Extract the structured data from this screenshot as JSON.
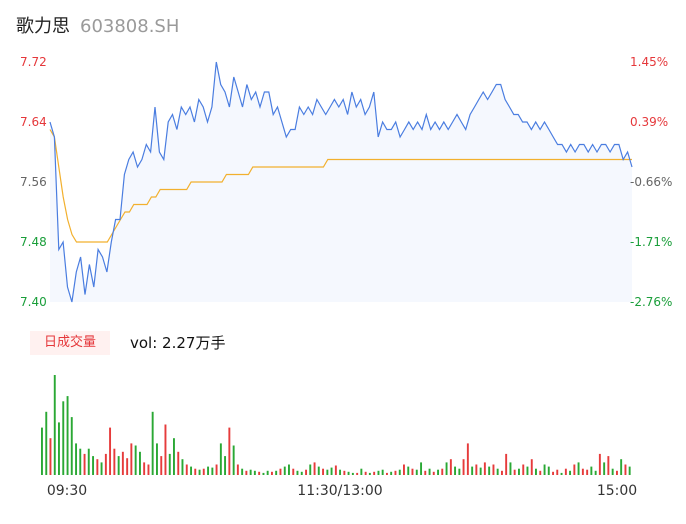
{
  "header": {
    "name": "歌力思",
    "code": "603808.SH"
  },
  "volume_panel": {
    "tag": "日成交量",
    "summary": "vol: 2.27万手"
  },
  "colors": {
    "price_line": "#4a7de0",
    "avg_line": "#f2b02e",
    "area_fill": "#f5f8fe",
    "up": "#e5383b",
    "down": "#1a9e3a",
    "vol_up": "#e63b3b",
    "vol_down": "#2aa834"
  },
  "chart_data": [
    {
      "type": "line",
      "title": "",
      "y_ticks": [
        "7.72",
        "7.64",
        "7.56",
        "7.48",
        "7.40"
      ],
      "y_right_ticks": [
        "1.45%",
        "0.39%",
        "-0.66%",
        "-1.71%",
        "-2.76%"
      ],
      "ylim": [
        7.4,
        7.72
      ],
      "series": [
        {
          "key": "price",
          "values": [
            7.64,
            7.62,
            7.47,
            7.48,
            7.42,
            7.4,
            7.44,
            7.46,
            7.41,
            7.45,
            7.42,
            7.47,
            7.46,
            7.44,
            7.48,
            7.51,
            7.51,
            7.57,
            7.59,
            7.6,
            7.58,
            7.59,
            7.61,
            7.6,
            7.66,
            7.6,
            7.59,
            7.64,
            7.65,
            7.63,
            7.66,
            7.65,
            7.66,
            7.64,
            7.67,
            7.66,
            7.64,
            7.66,
            7.72,
            7.69,
            7.68,
            7.66,
            7.7,
            7.68,
            7.66,
            7.69,
            7.67,
            7.68,
            7.66,
            7.68,
            7.68,
            7.65,
            7.66,
            7.64,
            7.62,
            7.63,
            7.63,
            7.66,
            7.65,
            7.66,
            7.65,
            7.67,
            7.66,
            7.65,
            7.66,
            7.67,
            7.66,
            7.67,
            7.65,
            7.68,
            7.66,
            7.67,
            7.65,
            7.66,
            7.68,
            7.62,
            7.64,
            7.63,
            7.63,
            7.64,
            7.62,
            7.63,
            7.64,
            7.63,
            7.64,
            7.63,
            7.65,
            7.63,
            7.64,
            7.63,
            7.64,
            7.63,
            7.64,
            7.65,
            7.64,
            7.63,
            7.65,
            7.66,
            7.67,
            7.68,
            7.67,
            7.68,
            7.69,
            7.69,
            7.67,
            7.66,
            7.65,
            7.65,
            7.64,
            7.64,
            7.63,
            7.64,
            7.63,
            7.64,
            7.63,
            7.62,
            7.61,
            7.61,
            7.6,
            7.61,
            7.6,
            7.61,
            7.61,
            7.6,
            7.61,
            7.6,
            7.61,
            7.61,
            7.6,
            7.61,
            7.61,
            7.59,
            7.6,
            7.58
          ]
        },
        {
          "key": "average",
          "values": [
            7.63,
            7.62,
            7.58,
            7.54,
            7.51,
            7.49,
            7.48,
            7.48,
            7.48,
            7.48,
            7.48,
            7.48,
            7.48,
            7.48,
            7.49,
            7.5,
            7.51,
            7.52,
            7.52,
            7.53,
            7.53,
            7.53,
            7.53,
            7.54,
            7.54,
            7.55,
            7.55,
            7.55,
            7.55,
            7.55,
            7.55,
            7.55,
            7.56,
            7.56,
            7.56,
            7.56,
            7.56,
            7.56,
            7.56,
            7.56,
            7.57,
            7.57,
            7.57,
            7.57,
            7.57,
            7.57,
            7.58,
            7.58,
            7.58,
            7.58,
            7.58,
            7.58,
            7.58,
            7.58,
            7.58,
            7.58,
            7.58,
            7.58,
            7.58,
            7.58,
            7.58,
            7.58,
            7.58,
            7.59,
            7.59,
            7.59,
            7.59,
            7.59,
            7.59,
            7.59,
            7.59,
            7.59,
            7.59,
            7.59,
            7.59,
            7.59,
            7.59,
            7.59,
            7.59,
            7.59,
            7.59,
            7.59,
            7.59,
            7.59,
            7.59,
            7.59,
            7.59,
            7.59,
            7.59,
            7.59,
            7.59,
            7.59,
            7.59,
            7.59,
            7.59,
            7.59,
            7.59,
            7.59,
            7.59,
            7.59,
            7.59,
            7.59,
            7.59,
            7.59,
            7.59,
            7.59,
            7.59,
            7.59,
            7.59,
            7.59,
            7.59,
            7.59,
            7.59,
            7.59,
            7.59,
            7.59,
            7.59,
            7.59,
            7.59,
            7.59,
            7.59,
            7.59,
            7.59,
            7.59,
            7.59,
            7.59,
            7.59,
            7.59,
            7.59,
            7.59,
            7.59,
            7.59,
            7.59
          ]
        }
      ]
    },
    {
      "type": "bar",
      "title": "",
      "x_ticks": [
        "09:30",
        "11:30/13:00",
        "15:00"
      ],
      "values": [
        45,
        60,
        35,
        95,
        50,
        70,
        75,
        55,
        30,
        25,
        20,
        25,
        18,
        15,
        12,
        20,
        45,
        25,
        18,
        22,
        16,
        30,
        28,
        22,
        12,
        10,
        60,
        30,
        18,
        48,
        20,
        35,
        22,
        15,
        10,
        8,
        6,
        5,
        6,
        8,
        7,
        10,
        30,
        18,
        45,
        28,
        10,
        6,
        4,
        5,
        4,
        3,
        2,
        4,
        3,
        4,
        6,
        8,
        10,
        6,
        4,
        3,
        5,
        10,
        12,
        8,
        6,
        5,
        7,
        9,
        5,
        4,
        3,
        2,
        2,
        6,
        3,
        2,
        3,
        4,
        5,
        2,
        3,
        4,
        5,
        10,
        8,
        6,
        5,
        12,
        4,
        6,
        3,
        5,
        6,
        12,
        15,
        8,
        6,
        15,
        30,
        8,
        10,
        7,
        12,
        8,
        10,
        6,
        4,
        20,
        12,
        5,
        6,
        10,
        8,
        15,
        6,
        4,
        10,
        8,
        3,
        5,
        2,
        6,
        4,
        10,
        12,
        6,
        5,
        8,
        4,
        20,
        12,
        18,
        6,
        4,
        15,
        10,
        8
      ],
      "colors": [
        "d",
        "d",
        "u",
        "d",
        "d",
        "d",
        "d",
        "d",
        "d",
        "d",
        "u",
        "d",
        "d",
        "u",
        "d",
        "u",
        "u",
        "u",
        "d",
        "u",
        "u",
        "u",
        "d",
        "d",
        "u",
        "u",
        "d",
        "d",
        "u",
        "u",
        "d",
        "d",
        "u",
        "d",
        "u",
        "d",
        "u",
        "d",
        "u",
        "d",
        "d",
        "u",
        "d",
        "d",
        "u",
        "d",
        "u",
        "d",
        "u",
        "d",
        "d",
        "u",
        "d",
        "d",
        "u",
        "d",
        "u",
        "d",
        "d",
        "u",
        "d",
        "d",
        "u",
        "d",
        "u",
        "d",
        "u",
        "d",
        "d",
        "u",
        "d",
        "u",
        "d",
        "d",
        "u",
        "d",
        "u",
        "d",
        "u",
        "d",
        "d",
        "u",
        "d",
        "u",
        "d",
        "u",
        "d",
        "u",
        "d",
        "d",
        "u",
        "d",
        "u",
        "d",
        "u",
        "d",
        "u",
        "d",
        "d",
        "u",
        "u",
        "d",
        "u",
        "d",
        "u",
        "d",
        "u",
        "d",
        "u",
        "u",
        "d",
        "u",
        "d",
        "u",
        "d",
        "u",
        "d",
        "u",
        "d",
        "d",
        "u",
        "u",
        "d",
        "u",
        "d",
        "u",
        "d",
        "u",
        "u",
        "d",
        "d",
        "u",
        "d",
        "u",
        "d",
        "u",
        "d",
        "u",
        "d"
      ]
    }
  ]
}
